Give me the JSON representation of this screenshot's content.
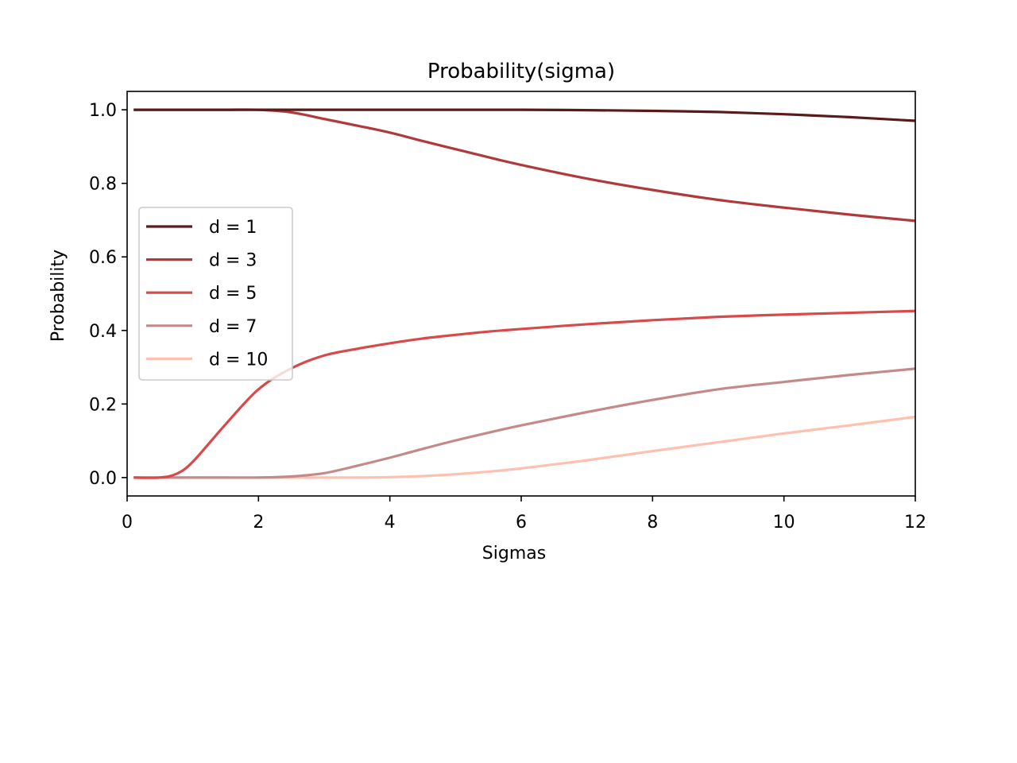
{
  "chart_data": {
    "type": "line",
    "title": "Probability(sigma)",
    "xlabel": "Sigmas",
    "ylabel": "Probability",
    "xlim": [
      0,
      12
    ],
    "ylim": [
      -0.05,
      1.05
    ],
    "xticks": [
      0,
      2,
      4,
      6,
      8,
      10,
      12
    ],
    "yticks": [
      0.0,
      0.2,
      0.4,
      0.6,
      0.8,
      1.0
    ],
    "xtick_labels": [
      "0",
      "2",
      "4",
      "6",
      "8",
      "10",
      "12"
    ],
    "ytick_labels": [
      "0.0",
      "0.2",
      "0.4",
      "0.6",
      "0.8",
      "1.0"
    ],
    "grid": false,
    "legend_position": "center-left",
    "x": [
      0.1,
      0.5,
      0.75,
      1,
      1.5,
      2,
      2.5,
      3,
      3.5,
      4,
      4.5,
      5,
      5.5,
      6,
      7,
      8,
      9,
      10,
      11,
      12
    ],
    "series": [
      {
        "name": "d = 1",
        "color": "#5a1a1a",
        "values": [
          1.0,
          1.0,
          1.0,
          1.0,
          1.0,
          1.0,
          1.0,
          1.0,
          1.0,
          1.0,
          1.0,
          1.0,
          1.0,
          1.0,
          0.999,
          0.997,
          0.994,
          0.988,
          0.98,
          0.97
        ]
      },
      {
        "name": "d = 3",
        "color": "#b03a3a",
        "values": [
          1.0,
          1.0,
          1.0,
          1.0,
          1.0,
          1.0,
          0.993,
          0.975,
          0.957,
          0.938,
          0.915,
          0.893,
          0.871,
          0.85,
          0.813,
          0.782,
          0.755,
          0.734,
          0.715,
          0.698
        ]
      },
      {
        "name": "d = 5",
        "color": "#d84a4a",
        "values": [
          0.0,
          0.0,
          0.01,
          0.043,
          0.145,
          0.24,
          0.297,
          0.332,
          0.35,
          0.365,
          0.378,
          0.388,
          0.397,
          0.404,
          0.417,
          0.428,
          0.437,
          0.443,
          0.448,
          0.453
        ]
      },
      {
        "name": "d = 7",
        "color": "#c48a8a",
        "values": [
          0.0,
          0.0,
          0.0,
          0.0,
          0.0,
          0.0,
          0.003,
          0.012,
          0.032,
          0.054,
          0.078,
          0.101,
          0.122,
          0.142,
          0.178,
          0.211,
          0.24,
          0.26,
          0.279,
          0.296
        ]
      },
      {
        "name": "d = 10",
        "color": "#ffc0b0",
        "values": [
          0.0,
          0.0,
          0.0,
          0.0,
          0.0,
          0.0,
          0.0,
          0.0,
          0.0,
          0.001,
          0.004,
          0.009,
          0.016,
          0.025,
          0.047,
          0.072,
          0.096,
          0.12,
          0.142,
          0.165
        ]
      }
    ]
  }
}
